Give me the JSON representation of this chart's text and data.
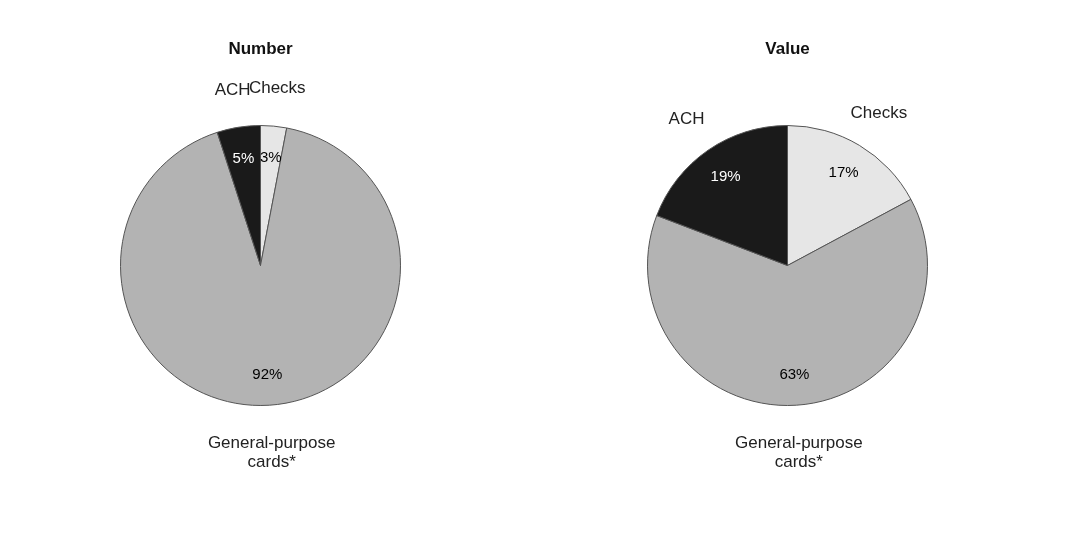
{
  "chart_data": [
    {
      "type": "pie",
      "title": "Number",
      "categories": [
        "Checks",
        "General-purpose cards*",
        "ACH"
      ],
      "values": [
        3,
        92,
        5
      ],
      "colors": [
        "#e6e6e6",
        "#b3b3b3",
        "#1a1a1a"
      ],
      "value_labels": [
        "3%",
        "92%",
        "5%"
      ]
    },
    {
      "type": "pie",
      "title": "Value",
      "categories": [
        "Checks",
        "General-purpose cards*",
        "ACH"
      ],
      "values": [
        17,
        63,
        19
      ],
      "colors": [
        "#e6e6e6",
        "#b3b3b3",
        "#1a1a1a"
      ],
      "value_labels": [
        "17%",
        "63%",
        "19%"
      ]
    }
  ]
}
